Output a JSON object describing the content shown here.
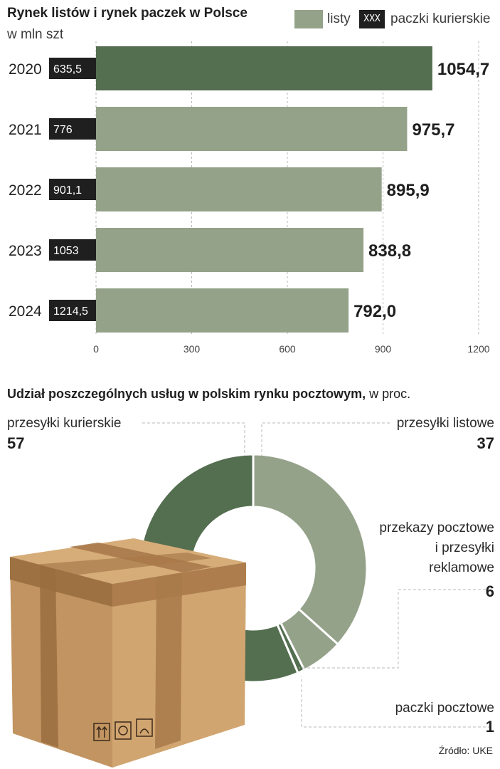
{
  "colors": {
    "listy": "#95a28a",
    "listy_highlight": "#546e50",
    "paczki": "#1f1f1f",
    "donut_dark": "#546e50",
    "donut_light": "#95a28a"
  },
  "chart1": {
    "title": "Rynek listów i rynek paczek w Polsce",
    "subtitle": "w mln szt",
    "legend": {
      "listy": "listy",
      "paczki_swatch": "XXX",
      "paczki": "paczki kurierskie"
    }
  },
  "chart2": {
    "title_bold": "Udział poszczególnych usług w polskim rynku pocztowym,",
    "title_rest": " w proc."
  },
  "source": "Źródło: UKE",
  "chart_data": [
    {
      "type": "bar",
      "orientation": "horizontal",
      "title": "Rynek listów i rynek paczek w Polsce",
      "subtitle": "w mln szt",
      "categories": [
        "2020",
        "2021",
        "2022",
        "2023",
        "2024"
      ],
      "series": [
        {
          "name": "listy",
          "values": [
            1054.7,
            975.7,
            895.9,
            838.8,
            792.0
          ],
          "labels": [
            "1054,7",
            "975,7",
            "895,9",
            "838,8",
            "792,0"
          ]
        },
        {
          "name": "paczki kurierskie",
          "values": [
            635.5,
            776,
            901.1,
            1053,
            1214.5
          ],
          "labels": [
            "635,5",
            "776",
            "901,1",
            "1053",
            "1214,5"
          ]
        }
      ],
      "xlim": [
        0,
        1200
      ],
      "xticks": [
        "0",
        "300",
        "600",
        "900",
        "1200"
      ],
      "grid": true,
      "legend": "top-right"
    },
    {
      "type": "pie",
      "style": "donut",
      "title": "Udział poszczególnych usług w polskim rynku pocztowym, w proc.",
      "slices": [
        {
          "label": "przesyłki listowe",
          "value": 37,
          "display": "37"
        },
        {
          "label": "przekazy pocztowe i przesyłki reklamowe",
          "label_lines": [
            "przekazy pocztowe",
            "i przesyłki",
            "reklamowe"
          ],
          "value": 6,
          "display": "6"
        },
        {
          "label": "paczki pocztowe",
          "value": 1,
          "display": "1"
        },
        {
          "label": "przesyłki kurierskie",
          "value": 57,
          "display": "57"
        }
      ]
    }
  ]
}
